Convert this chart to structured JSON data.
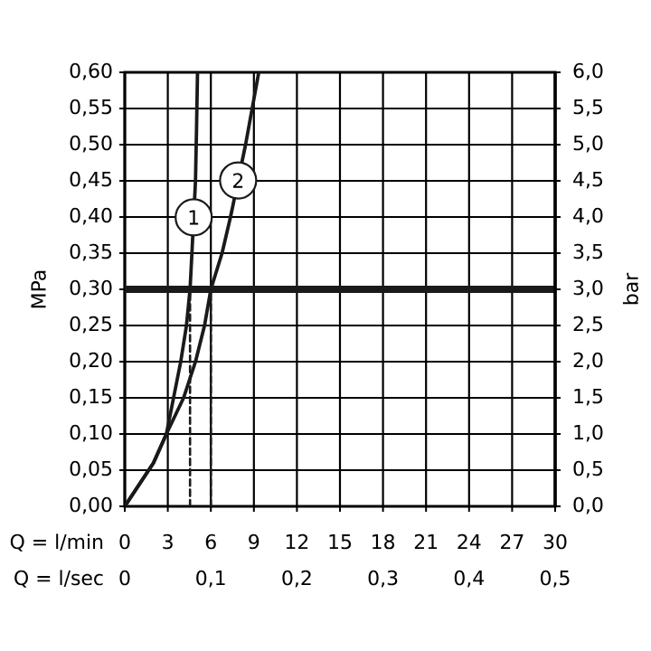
{
  "chart_data": {
    "type": "line",
    "xlabel": "Q = l/min",
    "x2label": "Q = l/sec",
    "ylabel": "MPa",
    "y2label": "bar",
    "xlim": [
      0,
      30
    ],
    "xticks": [
      0,
      3,
      6,
      9,
      12,
      15,
      18,
      21,
      24,
      27,
      30
    ],
    "x2lim": [
      0,
      0.5
    ],
    "x2ticks": [
      0,
      {
        "value": 0.1,
        "label": "0,1"
      },
      {
        "value": 0.2,
        "label": "0,2"
      },
      {
        "value": 0.3,
        "label": "0,3"
      },
      {
        "value": 0.4,
        "label": "0,4"
      },
      {
        "value": 0.5,
        "label": "0,5"
      }
    ],
    "ylim": [
      0,
      0.6
    ],
    "yticks": [
      {
        "value": 0,
        "label": "0,00"
      },
      {
        "value": 0.05,
        "label": "0,05"
      },
      {
        "value": 0.1,
        "label": "0,10"
      },
      {
        "value": 0.15,
        "label": "0,15"
      },
      {
        "value": 0.2,
        "label": "0,20"
      },
      {
        "value": 0.25,
        "label": "0,25"
      },
      {
        "value": 0.3,
        "label": "0,30"
      },
      {
        "value": 0.35,
        "label": "0,35"
      },
      {
        "value": 0.4,
        "label": "0,40"
      },
      {
        "value": 0.45,
        "label": "0,45"
      },
      {
        "value": 0.5,
        "label": "0,50"
      },
      {
        "value": 0.55,
        "label": "0,55"
      },
      {
        "value": 0.6,
        "label": "0,60"
      }
    ],
    "y2lim": [
      0,
      6
    ],
    "y2ticks": [
      {
        "value": 0,
        "label": "0,0"
      },
      {
        "value": 0.5,
        "label": "0,5"
      },
      {
        "value": 1,
        "label": "1,0"
      },
      {
        "value": 1.5,
        "label": "1,5"
      },
      {
        "value": 2,
        "label": "2,0"
      },
      {
        "value": 2.5,
        "label": "2,5"
      },
      {
        "value": 3,
        "label": "3,0"
      },
      {
        "value": 3.5,
        "label": "3,5"
      },
      {
        "value": 4,
        "label": "4,0"
      },
      {
        "value": 4.5,
        "label": "4,5"
      },
      {
        "value": 5,
        "label": "5,0"
      },
      {
        "value": 5.5,
        "label": "5,5"
      },
      {
        "value": 6,
        "label": "6,0"
      }
    ],
    "grid": true,
    "marker": "none",
    "series": [
      {
        "name": "1",
        "color": "#1a1a1a",
        "x": [
          0,
          1,
          2,
          2.9,
          3.4,
          3.9,
          4.3,
          4.55,
          4.68,
          4.93,
          5.0,
          5.07
        ],
        "values": [
          0,
          0.03,
          0.06,
          0.1,
          0.15,
          0.2,
          0.25,
          0.3,
          0.35,
          0.45,
          0.52,
          0.6
        ]
      },
      {
        "name": "2",
        "color": "#1a1a1a",
        "x": [
          0,
          1,
          2,
          2.9,
          4.1,
          4.93,
          5.56,
          6.0,
          6.78,
          7.37,
          8.42,
          9.34
        ],
        "values": [
          0,
          0.03,
          0.06,
          0.1,
          0.15,
          0.2,
          0.25,
          0.3,
          0.35,
          0.4,
          0.5,
          0.6
        ]
      },
      {
        "type": "line",
        "line_style": "dashed",
        "color": "#1a1a1a",
        "x": [
          4.55,
          4.55
        ],
        "values": [
          0,
          0.3
        ]
      },
      {
        "type": "line",
        "line_style": "dashed",
        "color": "#1a1a1a",
        "x": [
          6,
          6
        ],
        "values": [
          0,
          0.3
        ]
      }
    ],
    "ref_lines": [
      {
        "axis": "y",
        "value": 0.3,
        "color": "#1a1a1a"
      }
    ]
  }
}
